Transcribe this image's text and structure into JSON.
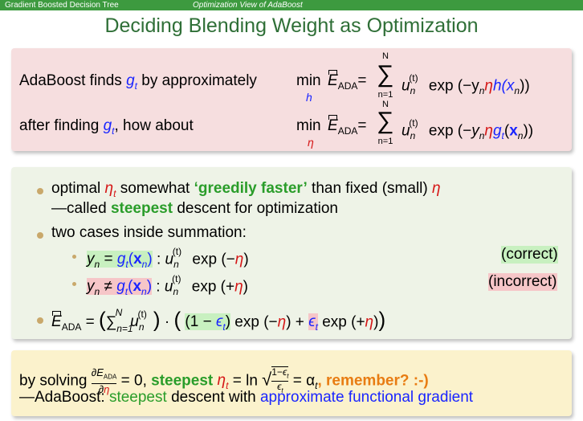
{
  "header": {
    "section": "Gradient Boosted Decision Tree",
    "subsection": "Optimization View of AdaBoost",
    "title": "Deciding Blending Weight as Optimization"
  },
  "box1": {
    "line1_text": "AdaBoost finds",
    "line1_gt": "g",
    "line1_gt_sub": "t",
    "line1_by": "by approximately",
    "line1_min": "min",
    "line1_min_under": "h",
    "line1_formula_tail": "exp (−y",
    "line1_h": "h(x",
    "line2_text": "after finding",
    "line2_how": ", how about",
    "line2_min_under": "η",
    "sum_top": "N",
    "sum_bottom": "n=1",
    "E_label": "E",
    "E_sub": "ADA"
  },
  "box2": {
    "b1_pre": "optimal",
    "b1_eta_t": "η",
    "b1_mid": "somewhat",
    "b1_green": "‘greedily faster’",
    "b1_post": "than fixed (small)",
    "b1_eta": "η",
    "b1_line2_pre": "—called",
    "b1_line2_green": "steepest",
    "b1_line2_post": "descent for optimization",
    "b2_text": "two cases inside summation:",
    "case1_note": "(correct)",
    "case2_note": "(incorrect)"
  },
  "box3": {
    "l1_pre": "by solving",
    "l1_eq": "= 0,",
    "l1_steepest": "steepest",
    "l1_eta": "η",
    "l1_ln": "= ln",
    "l1_alpha": "= α",
    "l1_remember": ", remember? :-)",
    "l2_pre": "—AdaBoost:",
    "l2_steepest": "steepest",
    "l2_mid": "descent with",
    "l2_blue": "approximate functional gradient"
  },
  "colors": {
    "header_bar": "#3d9a3f",
    "title": "#2f6f37",
    "box1_bg": "#f6dedf",
    "box2_bg": "#eef3e7",
    "box3_bg": "#fbf2cc",
    "blue": "#1a25ff",
    "red": "#d51616",
    "green": "#2a9d2a",
    "orange": "#e87c12"
  }
}
